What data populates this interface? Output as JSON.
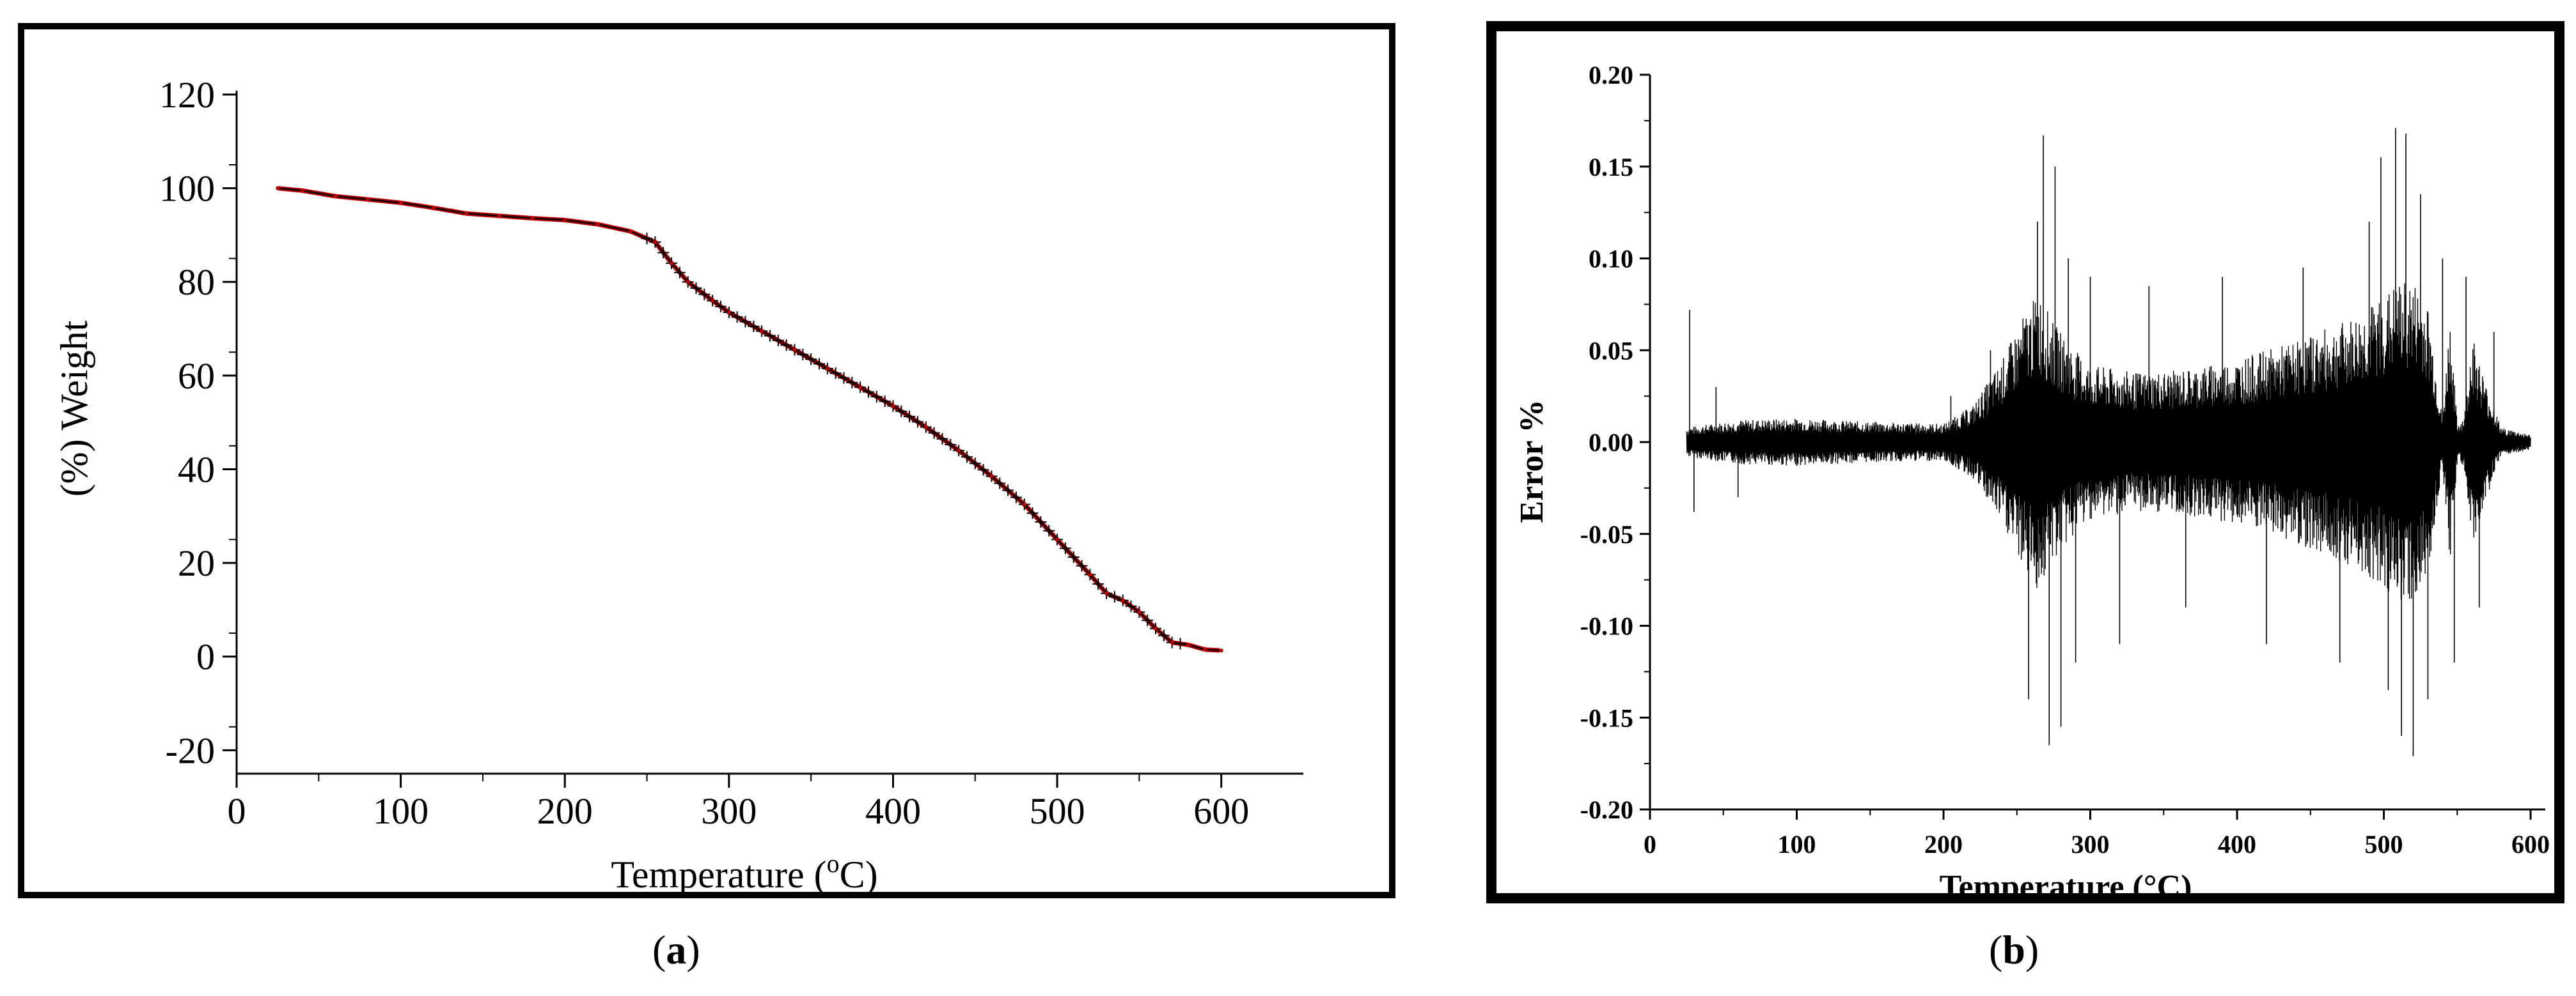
{
  "captions": {
    "a": "a",
    "b": "b"
  },
  "chart_data": [
    {
      "type": "line",
      "panel": "a",
      "title": "",
      "xlabel": "Temperature (",
      "xlabel_sup": "o",
      "xlabel_end": "C)",
      "ylabel": "(%) Weight",
      "xlim": [
        0,
        650
      ],
      "ylim": [
        -25,
        120
      ],
      "xticks": [
        0,
        100,
        200,
        300,
        400,
        500,
        600
      ],
      "yticks": [
        -20,
        0,
        20,
        40,
        60,
        80,
        100,
        120
      ],
      "grid": false,
      "colors": {
        "line": "#1a0000",
        "markers": "#c00000"
      },
      "series": [
        {
          "x": [
            25,
            40,
            60,
            80,
            100,
            120,
            140,
            160,
            180,
            200,
            220,
            240,
            255,
            265,
            275,
            290,
            300,
            320,
            340,
            360,
            380,
            400,
            420,
            440,
            460,
            480,
            500,
            520,
            530,
            540,
            550,
            560,
            570,
            580,
            590,
            600
          ],
          "values": [
            100,
            99.5,
            98.3,
            97.6,
            96.9,
            95.8,
            94.6,
            94.1,
            93.6,
            93.2,
            92.3,
            90.8,
            88.5,
            84,
            80,
            76,
            73.5,
            69.5,
            65.5,
            61.5,
            57.5,
            53.5,
            49,
            44,
            38.5,
            32.5,
            25,
            17.5,
            13.5,
            12,
            9.5,
            6,
            3,
            2.5,
            1.5,
            1.3
          ]
        }
      ]
    },
    {
      "type": "line",
      "panel": "b",
      "title": "",
      "xlabel": "Temperature (°C)",
      "ylabel": "Error %",
      "xlim": [
        0,
        610
      ],
      "ylim": [
        -0.2,
        0.2
      ],
      "xticks": [
        0,
        100,
        200,
        300,
        400,
        500,
        600
      ],
      "yticks": [
        "0.20",
        "0.15",
        "0.10",
        "0.05",
        "0.00",
        "-0.05",
        "-0.10",
        "-0.15",
        "-0.20"
      ],
      "grid": false,
      "colors": {
        "line": "#000000"
      },
      "series": [
        {
          "envelope_x": [
            25,
            60,
            100,
            150,
            200,
            220,
            240,
            255,
            265,
            275,
            290,
            300,
            330,
            360,
            400,
            440,
            480,
            500,
            510,
            520,
            530,
            540,
            545,
            550,
            555,
            560,
            570,
            580,
            590,
            600
          ],
          "envelope_amp": [
            0.008,
            0.012,
            0.013,
            0.011,
            0.01,
            0.02,
            0.045,
            0.07,
            0.082,
            0.065,
            0.05,
            0.042,
            0.038,
            0.039,
            0.045,
            0.055,
            0.068,
            0.08,
            0.087,
            0.088,
            0.075,
            0.012,
            0.07,
            0.01,
            0.015,
            0.06,
            0.03,
            0.008,
            0.006,
            0.004
          ],
          "spikes": [
            [
              27,
              0.072
            ],
            [
              30,
              -0.038
            ],
            [
              45,
              0.03
            ],
            [
              60,
              -0.03
            ],
            [
              205,
              0.025
            ],
            [
              232,
              0.05
            ],
            [
              258,
              -0.14
            ],
            [
              264,
              0.12
            ],
            [
              268,
              0.167
            ],
            [
              272,
              -0.165
            ],
            [
              276,
              0.15
            ],
            [
              280,
              -0.155
            ],
            [
              285,
              0.1
            ],
            [
              290,
              -0.12
            ],
            [
              300,
              0.09
            ],
            [
              320,
              -0.11
            ],
            [
              340,
              0.085
            ],
            [
              365,
              -0.09
            ],
            [
              390,
              0.09
            ],
            [
              420,
              -0.11
            ],
            [
              445,
              0.095
            ],
            [
              470,
              -0.12
            ],
            [
              490,
              0.12
            ],
            [
              498,
              0.155
            ],
            [
              503,
              -0.135
            ],
            [
              508,
              0.171
            ],
            [
              512,
              -0.16
            ],
            [
              515,
              0.168
            ],
            [
              520,
              -0.171
            ],
            [
              525,
              0.135
            ],
            [
              530,
              -0.14
            ],
            [
              540,
              0.1
            ],
            [
              548,
              -0.12
            ],
            [
              556,
              0.09
            ],
            [
              565,
              -0.09
            ],
            [
              575,
              0.06
            ]
          ]
        }
      ]
    }
  ]
}
